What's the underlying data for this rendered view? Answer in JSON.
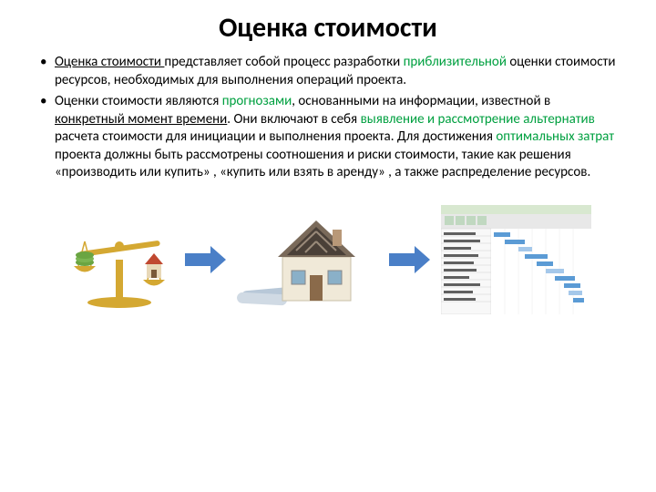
{
  "title": "Оценка стоимости",
  "bullets": [
    {
      "parts": [
        {
          "text": "Оценка стоимости ",
          "u": true
        },
        {
          "text": "представляет собой процесс разработки "
        },
        {
          "text": "приблизительной",
          "green": true
        },
        {
          "text": " оценки стоимости ресурсов, необходимых для выполнения операций проекта."
        }
      ]
    },
    {
      "parts": [
        {
          "text": "Оценки стоимости являются "
        },
        {
          "text": "прогнозами",
          "green": true
        },
        {
          "text": ", основанными на информации, известной в "
        },
        {
          "text": "конкретный момент времени",
          "u": true
        },
        {
          "text": ". Они включают в себя "
        },
        {
          "text": "выявление и рассмотрение альтернатив ",
          "green": true
        },
        {
          "text": "расчета стоимости для инициации и выполнения проекта. Для достижения "
        },
        {
          "text": "оптимальных затрат ",
          "green": true
        },
        {
          "text": "проекта должны быть рассмотрены соотношения и риски стоимости, такие как решения «производить или купить» , «купить или взять в аренду» , а также распределение ресурсов."
        }
      ]
    }
  ],
  "arrow_color": "#4a7fc7",
  "colors": {
    "scales_gold": "#d4a832",
    "scales_money": "#6aa542",
    "house_wall": "#f0e9d8",
    "house_roof": "#7a6a5a",
    "house_roof_dark": "#4a4038",
    "blueprint": "#b8c8d8",
    "software_bg": "#ffffff",
    "software_border": "#a0a0a0",
    "software_header": "#d8e8d0",
    "software_ribbon": "#e8e8e8",
    "gantt_bar": "#5b9bd5",
    "gantt_bar2": "#a5c8ea"
  }
}
